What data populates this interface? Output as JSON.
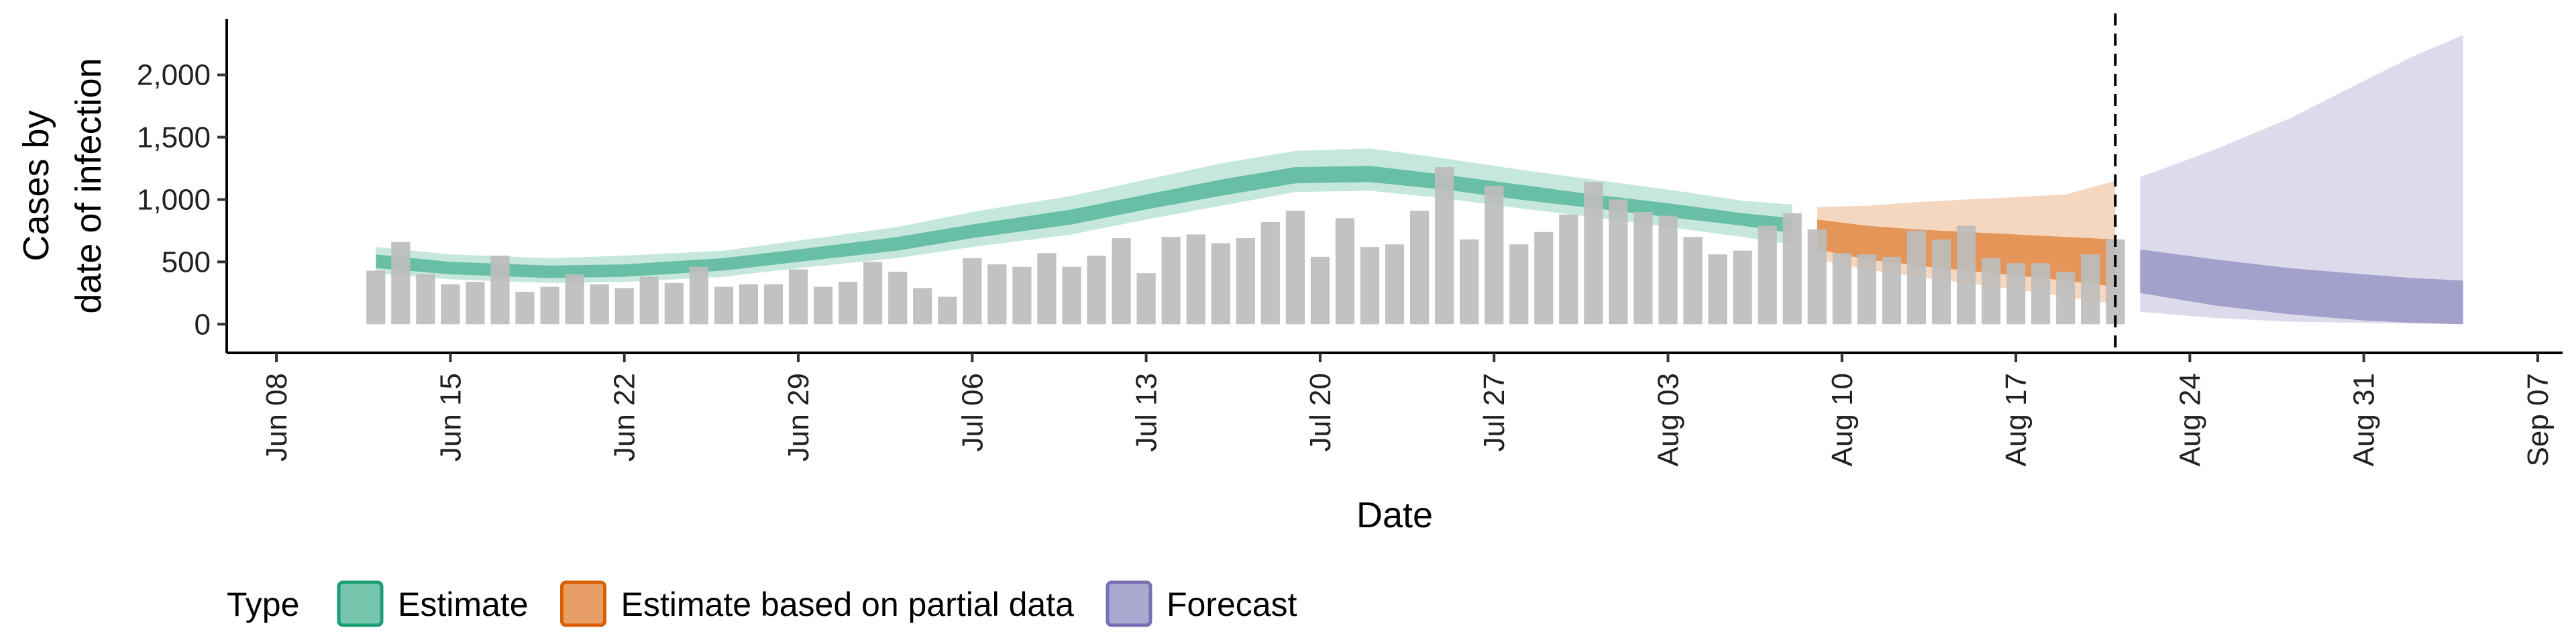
{
  "chart_data": {
    "type": "bar",
    "xlabel": "Date",
    "ylabel_lines": [
      "Cases by",
      "date of infection"
    ],
    "ylim": [
      -230,
      2450
    ],
    "xlim": [
      "2020-06-06",
      "2020-09-08"
    ],
    "y_ticks": [
      0,
      500,
      1000,
      1500,
      2000
    ],
    "y_tick_labels": [
      "0",
      "500",
      "1,000",
      "1,500",
      "2,000"
    ],
    "x_ticks": [
      "2020-06-08",
      "2020-06-15",
      "2020-06-22",
      "2020-06-29",
      "2020-07-06",
      "2020-07-13",
      "2020-07-20",
      "2020-07-27",
      "2020-08-03",
      "2020-08-10",
      "2020-08-17",
      "2020-08-24",
      "2020-08-31",
      "2020-09-07"
    ],
    "x_tick_labels": [
      "Jun 08",
      "Jun 15",
      "Jun 22",
      "Jun 29",
      "Jul 06",
      "Jul 13",
      "Jul 20",
      "Jul 27",
      "Aug 03",
      "Aug 10",
      "Aug 17",
      "Aug 24",
      "Aug 31",
      "Sep 07"
    ],
    "report_date": "2020-08-21",
    "grid": false,
    "legend": {
      "title": "Type",
      "position": "bottom",
      "items": [
        {
          "label": "Estimate",
          "color": "#1b9e77"
        },
        {
          "label": "Estimate based on partial data",
          "color": "#d95f02"
        },
        {
          "label": "Forecast",
          "color": "#7570b3"
        }
      ]
    },
    "bar_color": "#bdbdbd",
    "reported_cases": {
      "start_date": "2020-06-12",
      "values": [
        430,
        660,
        400,
        320,
        340,
        550,
        260,
        300,
        400,
        320,
        290,
        380,
        330,
        460,
        300,
        320,
        320,
        440,
        300,
        340,
        500,
        420,
        290,
        220,
        530,
        480,
        460,
        570,
        460,
        550,
        690,
        410,
        700,
        720,
        650,
        690,
        820,
        910,
        540,
        850,
        620,
        640,
        910,
        1260,
        680,
        1110,
        640,
        740,
        880,
        1140,
        1000,
        900,
        870,
        700,
        560,
        590,
        790,
        890,
        760,
        570,
        560,
        540,
        750,
        680,
        790,
        530,
        490,
        490,
        420,
        560,
        680
      ]
    },
    "series": [
      {
        "name": "Estimate",
        "color": "#1b9e77",
        "dates": [
          "2020-06-12",
          "2020-06-15",
          "2020-06-19",
          "2020-06-22",
          "2020-06-26",
          "2020-06-29",
          "2020-07-03",
          "2020-07-06",
          "2020-07-10",
          "2020-07-13",
          "2020-07-16",
          "2020-07-19",
          "2020-07-22",
          "2020-07-25",
          "2020-07-28",
          "2020-07-31",
          "2020-08-03",
          "2020-08-06",
          "2020-08-08"
        ],
        "inner_lower": [
          450,
          400,
          370,
          380,
          430,
          500,
          590,
          690,
          800,
          920,
          1030,
          1130,
          1140,
          1080,
          1000,
          930,
          860,
          790,
          730
        ],
        "inner_upper": [
          560,
          500,
          470,
          480,
          530,
          600,
          700,
          800,
          920,
          1040,
          1160,
          1260,
          1270,
          1200,
          1120,
          1040,
          970,
          890,
          850
        ],
        "outer_lower": [
          410,
          360,
          330,
          340,
          380,
          450,
          530,
          620,
          720,
          840,
          950,
          1060,
          1070,
          1010,
          930,
          860,
          780,
          700,
          640
        ],
        "outer_upper": [
          620,
          560,
          530,
          550,
          590,
          670,
          780,
          900,
          1030,
          1160,
          1290,
          1390,
          1410,
          1330,
          1240,
          1160,
          1080,
          990,
          960
        ]
      },
      {
        "name": "Estimate based on partial data",
        "color": "#d95f02",
        "dates": [
          "2020-08-09",
          "2020-08-11",
          "2020-08-13",
          "2020-08-15",
          "2020-08-17",
          "2020-08-19",
          "2020-08-21"
        ],
        "inner_lower": [
          600,
          520,
          470,
          430,
          390,
          350,
          300
        ],
        "inner_upper": [
          840,
          790,
          760,
          740,
          720,
          700,
          680
        ],
        "outer_lower": [
          520,
          440,
          380,
          330,
          280,
          220,
          160
        ],
        "outer_upper": [
          940,
          950,
          980,
          1000,
          1020,
          1040,
          1150
        ]
      },
      {
        "name": "Forecast",
        "color": "#7570b3",
        "dates": [
          "2020-08-22",
          "2020-08-25",
          "2020-08-28",
          "2020-08-31",
          "2020-09-02",
          "2020-09-04"
        ],
        "inner_lower": [
          250,
          150,
          80,
          30,
          10,
          0
        ],
        "inner_upper": [
          600,
          520,
          450,
          400,
          370,
          350
        ],
        "outer_lower": [
          100,
          50,
          20,
          10,
          5,
          0
        ],
        "outer_upper": [
          1180,
          1400,
          1650,
          1950,
          2150,
          2320
        ]
      }
    ]
  }
}
